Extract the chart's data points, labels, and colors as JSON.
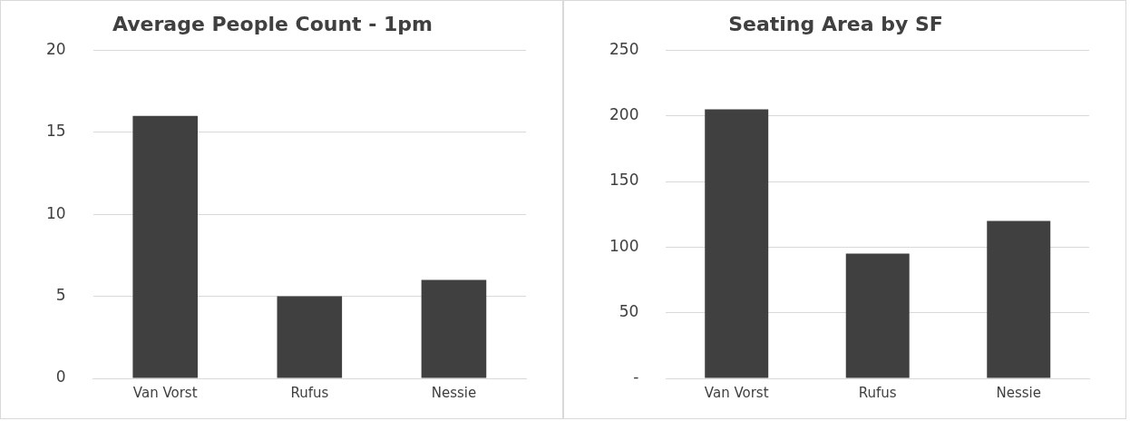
{
  "chart_data": [
    {
      "type": "bar",
      "title": "Average People Count - 1pm",
      "categories": [
        "Van Vorst",
        "Rufus",
        "Nessie"
      ],
      "values": [
        16,
        5,
        6
      ],
      "color": "#404040",
      "ylim": [
        0,
        20
      ],
      "yticks": [
        0,
        5,
        10,
        15,
        20
      ],
      "grid": "y",
      "legend": false
    },
    {
      "type": "bar",
      "title": "Seating Area by SF",
      "categories": [
        "Van Vorst",
        "Rufus",
        "Nessie"
      ],
      "values": [
        205,
        95,
        120
      ],
      "color": "#404040",
      "ylim": [
        0,
        250
      ],
      "yticks": [
        {
          "value": 0,
          "label": "-"
        },
        50,
        100,
        150,
        200,
        250
      ],
      "grid": "y",
      "legend": false
    }
  ]
}
